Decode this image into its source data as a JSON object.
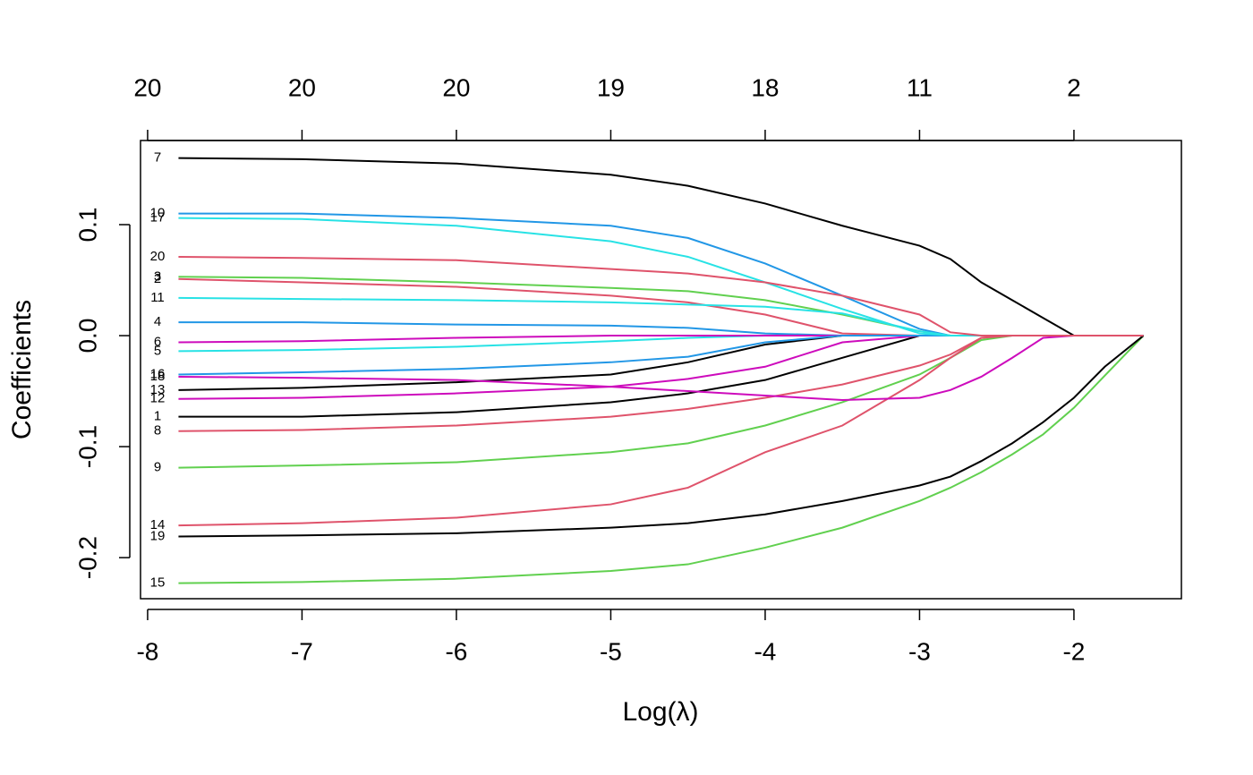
{
  "chart_data": {
    "type": "line",
    "xlabel": "Log(λ)",
    "ylabel": "Coefficients",
    "xlim": [
      -8.046,
      -1.304
    ],
    "ylim": [
      -0.237,
      0.1758
    ],
    "xticks": [
      -8,
      -7,
      -6,
      -5,
      -4,
      -3,
      -2
    ],
    "x2ticks": [
      {
        "value": -8,
        "label": "20"
      },
      {
        "value": -7,
        "label": "20"
      },
      {
        "value": -6,
        "label": "20"
      },
      {
        "value": -5,
        "label": "19"
      },
      {
        "value": -4,
        "label": "18"
      },
      {
        "value": -3,
        "label": "11"
      },
      {
        "value": -2,
        "label": "2"
      }
    ],
    "yticks": [
      -0.2,
      -0.1,
      {
        "value": 0,
        "label": "0.0"
      },
      0.1
    ],
    "x": [
      -7.8,
      -7,
      -6,
      -5,
      -4.5,
      -4,
      -3.5,
      -3,
      -2.8,
      -2.6,
      -2.4,
      -2.2,
      -2,
      -1.8,
      -1.55
    ],
    "series": [
      {
        "name": "1",
        "color": "#000000",
        "values": [
          -0.073,
          -0.073,
          -0.069,
          -0.06,
          -0.052,
          -0.04,
          -0.02,
          0,
          0,
          0,
          0,
          0,
          0,
          0,
          0
        ]
      },
      {
        "name": "2",
        "color": "#DF536B",
        "values": [
          0.051,
          0.048,
          0.044,
          0.036,
          0.03,
          0.019,
          0.002,
          0,
          0,
          0,
          0,
          0,
          0,
          0,
          0
        ]
      },
      {
        "name": "3",
        "color": "#61D04F",
        "values": [
          0.053,
          0.052,
          0.048,
          0.043,
          0.04,
          0.032,
          0.019,
          0.004,
          0,
          0,
          0,
          0,
          0,
          0,
          0
        ]
      },
      {
        "name": "4",
        "color": "#2297E6",
        "values": [
          0.012,
          0.012,
          0.01,
          0.009,
          0.007,
          0.002,
          0,
          0,
          0,
          0,
          0,
          0,
          0,
          0,
          0
        ]
      },
      {
        "name": "5",
        "color": "#28E2E5",
        "values": [
          -0.014,
          -0.013,
          -0.01,
          -0.005,
          -0.002,
          0,
          0,
          0,
          0,
          0,
          0,
          0,
          0,
          0,
          0
        ]
      },
      {
        "name": "6",
        "color": "#CD0BBC",
        "values": [
          -0.006,
          -0.005,
          -0.002,
          0,
          0,
          0,
          0,
          0,
          0,
          0,
          0,
          0,
          0,
          0,
          0
        ]
      },
      {
        "name": "7",
        "color": "#000000",
        "values": [
          0.16,
          0.159,
          0.155,
          0.145,
          0.135,
          0.119,
          0.099,
          0.081,
          0.069,
          0.048,
          0.032,
          0.016,
          0,
          0,
          0
        ]
      },
      {
        "name": "8",
        "color": "#DF536B",
        "values": [
          -0.086,
          -0.085,
          -0.081,
          -0.073,
          -0.066,
          -0.056,
          -0.044,
          -0.027,
          -0.017,
          -0.002,
          0,
          0,
          0,
          0,
          0
        ]
      },
      {
        "name": "9",
        "color": "#61D04F",
        "values": [
          -0.119,
          -0.117,
          -0.114,
          -0.105,
          -0.097,
          -0.081,
          -0.06,
          -0.035,
          -0.02,
          -0.004,
          0,
          0,
          0,
          0,
          0
        ]
      },
      {
        "name": "10",
        "color": "#2297E6",
        "values": [
          0.11,
          0.11,
          0.106,
          0.099,
          0.088,
          0.065,
          0.036,
          0.006,
          0,
          0,
          0,
          0,
          0,
          0,
          0
        ]
      },
      {
        "name": "11",
        "color": "#28E2E5",
        "values": [
          0.034,
          0.033,
          0.032,
          0.03,
          0.028,
          0.026,
          0.02,
          0.004,
          0,
          0,
          0,
          0,
          0,
          0,
          0
        ]
      },
      {
        "name": "12",
        "color": "#CD0BBC",
        "values": [
          -0.057,
          -0.056,
          -0.052,
          -0.046,
          -0.039,
          -0.028,
          -0.006,
          0,
          0,
          0,
          0,
          0,
          0,
          0,
          0
        ]
      },
      {
        "name": "13",
        "color": "#000000",
        "values": [
          -0.049,
          -0.047,
          -0.042,
          -0.035,
          -0.024,
          -0.008,
          0,
          0,
          0,
          0,
          0,
          0,
          0,
          0,
          0
        ]
      },
      {
        "name": "14",
        "color": "#DF536B",
        "values": [
          -0.171,
          -0.169,
          -0.164,
          -0.152,
          -0.137,
          -0.105,
          -0.081,
          -0.04,
          -0.02,
          -0.002,
          0,
          0,
          0,
          0,
          0
        ]
      },
      {
        "name": "15",
        "color": "#61D04F",
        "values": [
          -0.223,
          -0.222,
          -0.219,
          -0.212,
          -0.206,
          -0.191,
          -0.173,
          -0.149,
          -0.137,
          -0.123,
          -0.107,
          -0.089,
          -0.065,
          -0.036,
          0
        ]
      },
      {
        "name": "16",
        "color": "#2297E6",
        "values": [
          -0.035,
          -0.033,
          -0.03,
          -0.024,
          -0.019,
          -0.006,
          0,
          0,
          0,
          0,
          0,
          0,
          0,
          0,
          0
        ]
      },
      {
        "name": "17",
        "color": "#28E2E5",
        "values": [
          0.106,
          0.105,
          0.099,
          0.085,
          0.071,
          0.048,
          0.024,
          0.002,
          0,
          0,
          0,
          0,
          0,
          0,
          0
        ]
      },
      {
        "name": "18",
        "color": "#CD0BBC",
        "values": [
          -0.037,
          -0.038,
          -0.04,
          -0.046,
          -0.05,
          -0.054,
          -0.058,
          -0.056,
          -0.049,
          -0.037,
          -0.02,
          -0.002,
          0,
          0,
          0
        ]
      },
      {
        "name": "19",
        "color": "#000000",
        "values": [
          -0.181,
          -0.18,
          -0.178,
          -0.173,
          -0.169,
          -0.161,
          -0.149,
          -0.135,
          -0.127,
          -0.113,
          -0.097,
          -0.078,
          -0.056,
          -0.028,
          0
        ]
      },
      {
        "name": "20",
        "color": "#DF536B",
        "values": [
          0.071,
          0.07,
          0.068,
          0.06,
          0.056,
          0.048,
          0.036,
          0.019,
          0.003,
          0,
          0,
          0,
          0,
          0,
          0
        ]
      }
    ]
  }
}
